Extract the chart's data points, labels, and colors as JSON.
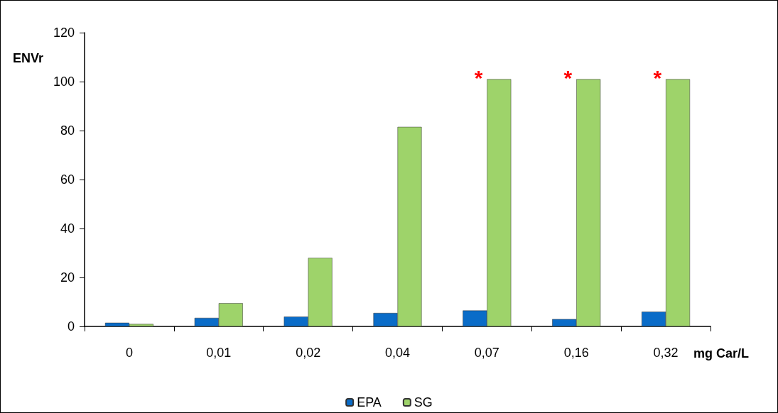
{
  "chart_data": {
    "type": "bar",
    "ylabel": "ENVr",
    "xlabel": "mg Car/L",
    "categories": [
      "0",
      "0,01",
      "0,02",
      "0,04",
      "0,07",
      "0,16",
      "0,32"
    ],
    "series": [
      {
        "name": "EPA",
        "color": "#0a6cc8",
        "values": [
          1.5,
          3.5,
          4,
          5.5,
          6.5,
          3,
          6
        ]
      },
      {
        "name": "SG",
        "color": "#9ed36a",
        "values": [
          1,
          9.5,
          28,
          81.5,
          101,
          101,
          101
        ]
      }
    ],
    "ylim": [
      0,
      120
    ],
    "yticks": [
      0,
      20,
      40,
      60,
      80,
      100,
      120
    ],
    "grid": false,
    "legend": "bottom",
    "annotations": [
      {
        "text": "*",
        "x": "0,07",
        "y": 101
      },
      {
        "text": "*",
        "x": "0,16",
        "y": 101
      },
      {
        "text": "*",
        "x": "0,32",
        "y": 101
      }
    ]
  }
}
